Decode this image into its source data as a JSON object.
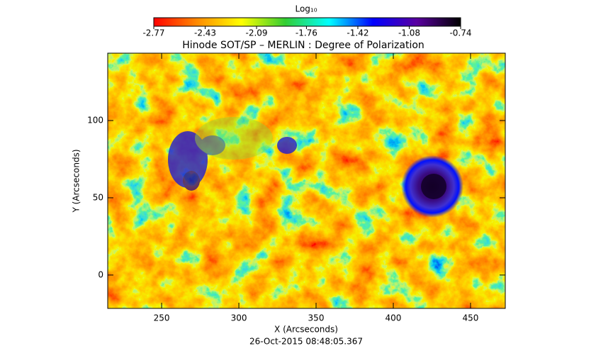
{
  "chart_data": {
    "type": "image",
    "title": "Hinode SOT/SP – MERLIN : Degree of Polarization",
    "xlabel": "X (Arcseconds)",
    "ylabel": "Y (Arcseconds)",
    "footer": "26-Oct-2015 08:48:05.367",
    "xlim": [
      215.1,
      472.5
    ],
    "ylim": [
      -21.6,
      143.6
    ],
    "xticks": [
      250,
      300,
      350,
      400,
      450
    ],
    "yticks": [
      0,
      50,
      100
    ],
    "colorbar": {
      "label": "Log₁₀",
      "lim": [
        -2.77,
        -0.74
      ],
      "ticks": [
        -2.77,
        -2.43,
        -2.09,
        -1.76,
        -1.42,
        -1.08,
        -0.74
      ],
      "colors": [
        "#ff0000",
        "#ff8c00",
        "#ffff00",
        "#32cd32",
        "#00ffff",
        "#0000ff",
        "#5a00a0",
        "#000000"
      ]
    }
  }
}
